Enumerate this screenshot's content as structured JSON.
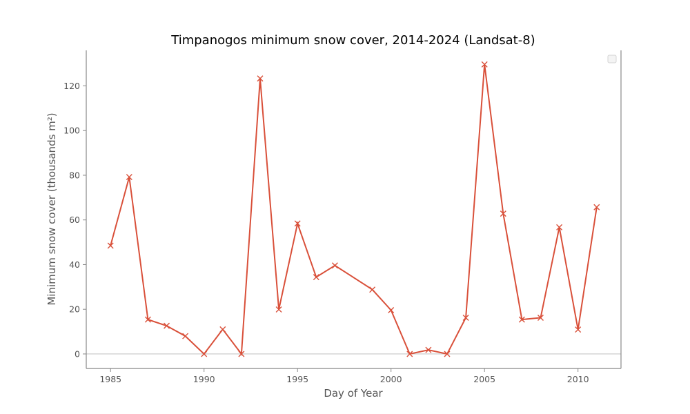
{
  "chart_data": {
    "type": "line",
    "title": "Timpanogos minimum snow cover, 2014-2024 (Landsat-8)",
    "xlabel": "Day of Year",
    "ylabel": "Minimum snow cover (thousands m²)",
    "xlim": [
      1983.7,
      2012.3
    ],
    "ylim": [
      -6.5,
      135.9
    ],
    "x_ticks": [
      1985,
      1990,
      1995,
      2000,
      2005,
      2010
    ],
    "y_ticks": [
      0,
      20,
      40,
      60,
      80,
      100,
      120
    ],
    "reference_line_y": 0,
    "grid": false,
    "legend": "top-right (empty)",
    "series": [
      {
        "color": "#d9503a",
        "marker": "x",
        "x": [
          1985,
          1986,
          1987,
          1988,
          1989,
          1990,
          1991,
          1992,
          1993,
          1994,
          1995,
          1996,
          1997,
          1999,
          2000,
          2001,
          2002,
          2003,
          2004,
          2005,
          2006,
          2007,
          2008,
          2009,
          2010,
          2011
        ],
        "values": [
          48.5,
          79.2,
          15.4,
          12.6,
          8.0,
          0.0,
          11.0,
          0.0,
          123.3,
          19.9,
          58.4,
          34.4,
          39.6,
          28.8,
          19.6,
          0.0,
          1.8,
          0.0,
          16.2,
          129.6,
          62.8,
          15.4,
          16.2,
          56.7,
          10.9,
          65.7
        ]
      }
    ]
  }
}
